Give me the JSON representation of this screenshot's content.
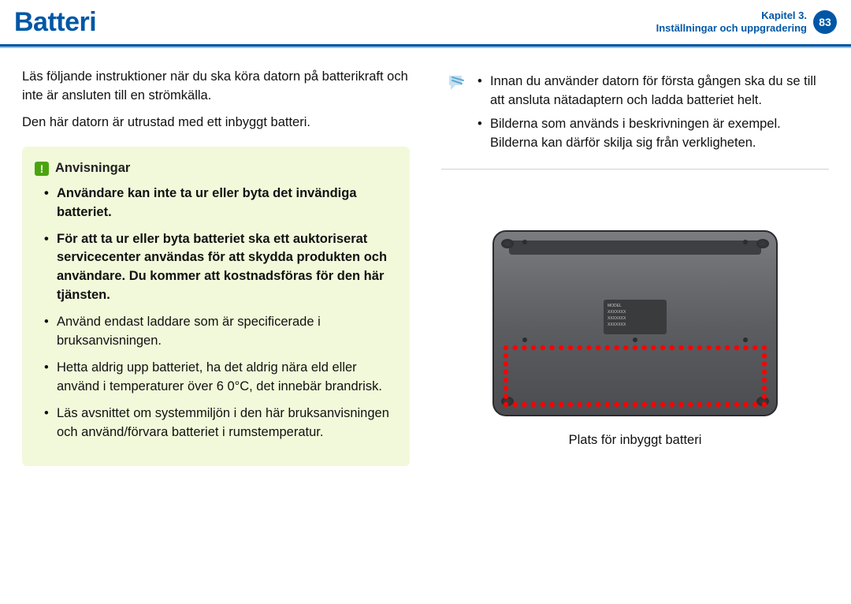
{
  "header": {
    "title": "Batteri",
    "chapter_line1": "Kapitel 3.",
    "chapter_line2": "Inställningar och uppgradering",
    "page_number": "83",
    "underline_main": "#0157a6",
    "underline_shadow": "#9cbfe0",
    "badge_bg": "#0157a6"
  },
  "left": {
    "intro1": "Läs följande instruktioner när du ska köra datorn på batterikraft och inte är ansluten till en strömkälla.",
    "intro2": "Den här datorn är utrustad med ett inbyggt batteri.",
    "anvisningar": {
      "title": "Anvisningar",
      "icon_bg": "#4aa40f",
      "box_bg": "#f2f9da",
      "items": [
        {
          "text": "Användare kan inte ta ur eller byta det invändiga batteriet.",
          "bold": true
        },
        {
          "text": "För att ta ur eller byta batteriet ska ett auktoriserat servicecenter användas för att skydda produkten och användare. Du kommer att kostnadsföras för den här tjänsten.",
          "bold": true
        },
        {
          "text": "Använd endast laddare som är specificerade i bruksanvisningen.",
          "bold": false
        },
        {
          "text": "Hetta aldrig upp batteriet, ha det aldrig nära eld eller använd i temperaturer över 6 0°C, det innebär brandrisk.",
          "bold": false
        },
        {
          "text": "Läs avsnittet om systemmiljön i den här bruksanvisningen och använd/förvara batteriet i rumstemperatur.",
          "bold": false
        }
      ]
    }
  },
  "right": {
    "info": [
      "Innan du använder datorn för första gången ska du se till att ansluta nätadaptern och ladda batteriet helt.",
      "Bilderna som används i beskrivningen är exempel. Bilderna kan därför skilja sig från verkligheten."
    ],
    "info_icon_color": "#5da9d6",
    "figure": {
      "caption": "Plats för inbyggt batteri",
      "body_fill": "#5c5e62",
      "body_highlight": "#8c8e92",
      "foot_fill": "#2b2c2e",
      "dot_color": "#ff0000",
      "dot_radius": 3.2,
      "label_bg": "#3a3b3d",
      "label_text_color": "#c8c8c8"
    }
  }
}
